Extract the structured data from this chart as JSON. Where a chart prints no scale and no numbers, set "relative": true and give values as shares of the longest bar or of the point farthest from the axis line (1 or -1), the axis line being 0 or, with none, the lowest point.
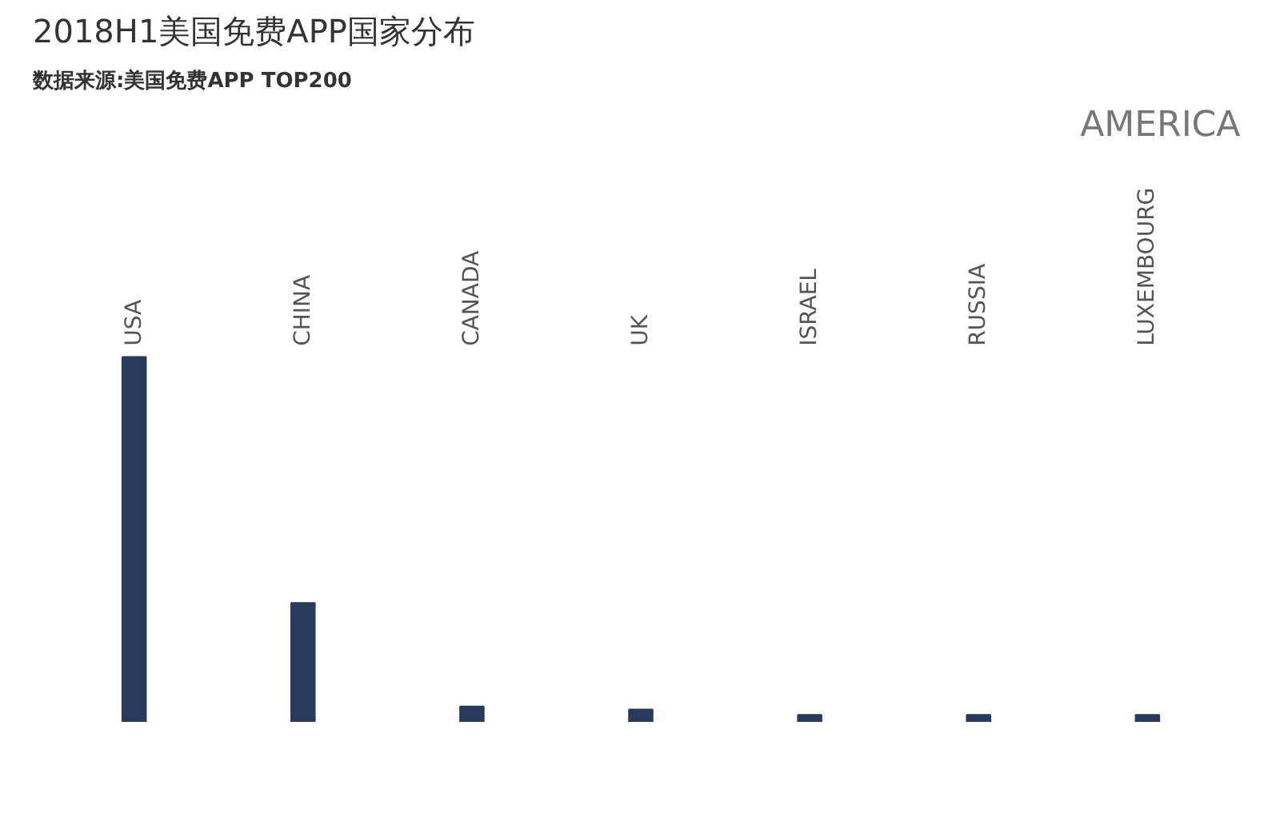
{
  "chart_data": {
    "type": "bar",
    "title": "2018H1美国免费APP国家分布",
    "subtitle": "数据来源:美国免费APP TOP200",
    "annotations": [
      "AMERICA"
    ],
    "categories": [
      "USA",
      "CHINA",
      "CANADA",
      "UK",
      "ISRAEL",
      "RUSSIA",
      "LUXEMBOURG"
    ],
    "values": [
      1,
      0.326,
      0.042,
      0.034,
      0.019,
      0.019,
      0.019
    ],
    "color": "#283a5e",
    "relative": true
  }
}
